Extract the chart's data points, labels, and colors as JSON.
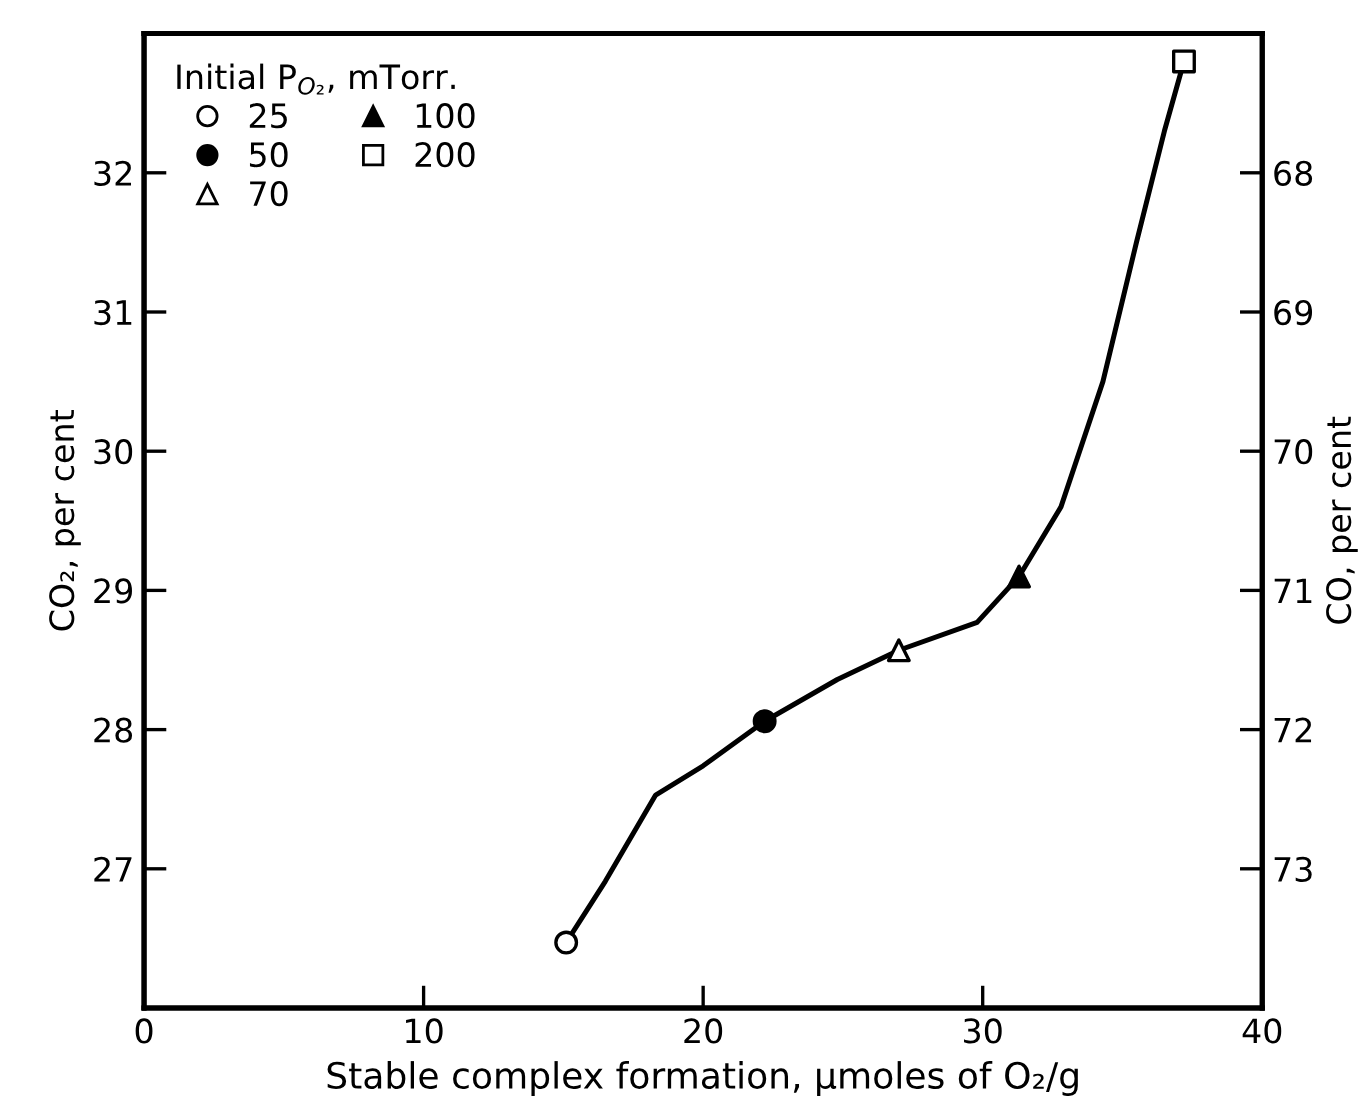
{
  "chart_data": {
    "type": "scatter",
    "xlabel": "Stable complex formation, μmoles of O₂/g",
    "ylabel": "CO₂, per cent",
    "y2label": "CO, per cent",
    "legend_title": "Initial P$_{O₂}$, mTorr.",
    "xlim": [
      0,
      40
    ],
    "xticks": [
      0,
      10,
      20,
      30,
      40
    ],
    "ylim": [
      26,
      33
    ],
    "yticks": [
      27,
      28,
      29,
      30,
      31,
      32
    ],
    "y2lim": [
      74,
      67
    ],
    "y2ticks": [
      68,
      69,
      70,
      71,
      72,
      73
    ],
    "grid": false,
    "legend": "top left",
    "series": [
      {
        "type": "line",
        "color": "#000000",
        "marker": "none",
        "line_style": "solid",
        "x": [
          15.1,
          16.5,
          18.3,
          20.0,
          22.2,
          24.8,
          27.0,
          29.8,
          31.3,
          32.8,
          34.3,
          35.5,
          36.5,
          37.2
        ],
        "values": [
          26.47,
          26.91,
          27.53,
          27.74,
          28.06,
          28.36,
          28.57,
          28.77,
          29.1,
          29.6,
          30.5,
          31.5,
          32.3,
          32.8
        ]
      },
      {
        "name": "25",
        "color": "#ffffff",
        "marker": "circle",
        "x": [
          15.1
        ],
        "values": [
          26.47
        ]
      },
      {
        "name": "50",
        "color": "#000000",
        "marker": "circle",
        "x": [
          22.2
        ],
        "values": [
          28.06
        ]
      },
      {
        "name": "70",
        "color": "#ffffff",
        "marker": "triangle",
        "x": [
          27.0
        ],
        "values": [
          28.57
        ]
      },
      {
        "name": "100",
        "color": "#000000",
        "marker": "triangle",
        "x": [
          31.3
        ],
        "values": [
          29.1
        ]
      },
      {
        "name": "200",
        "color": "#ffffff",
        "marker": "square",
        "x": [
          37.2
        ],
        "values": [
          32.8
        ]
      }
    ]
  }
}
